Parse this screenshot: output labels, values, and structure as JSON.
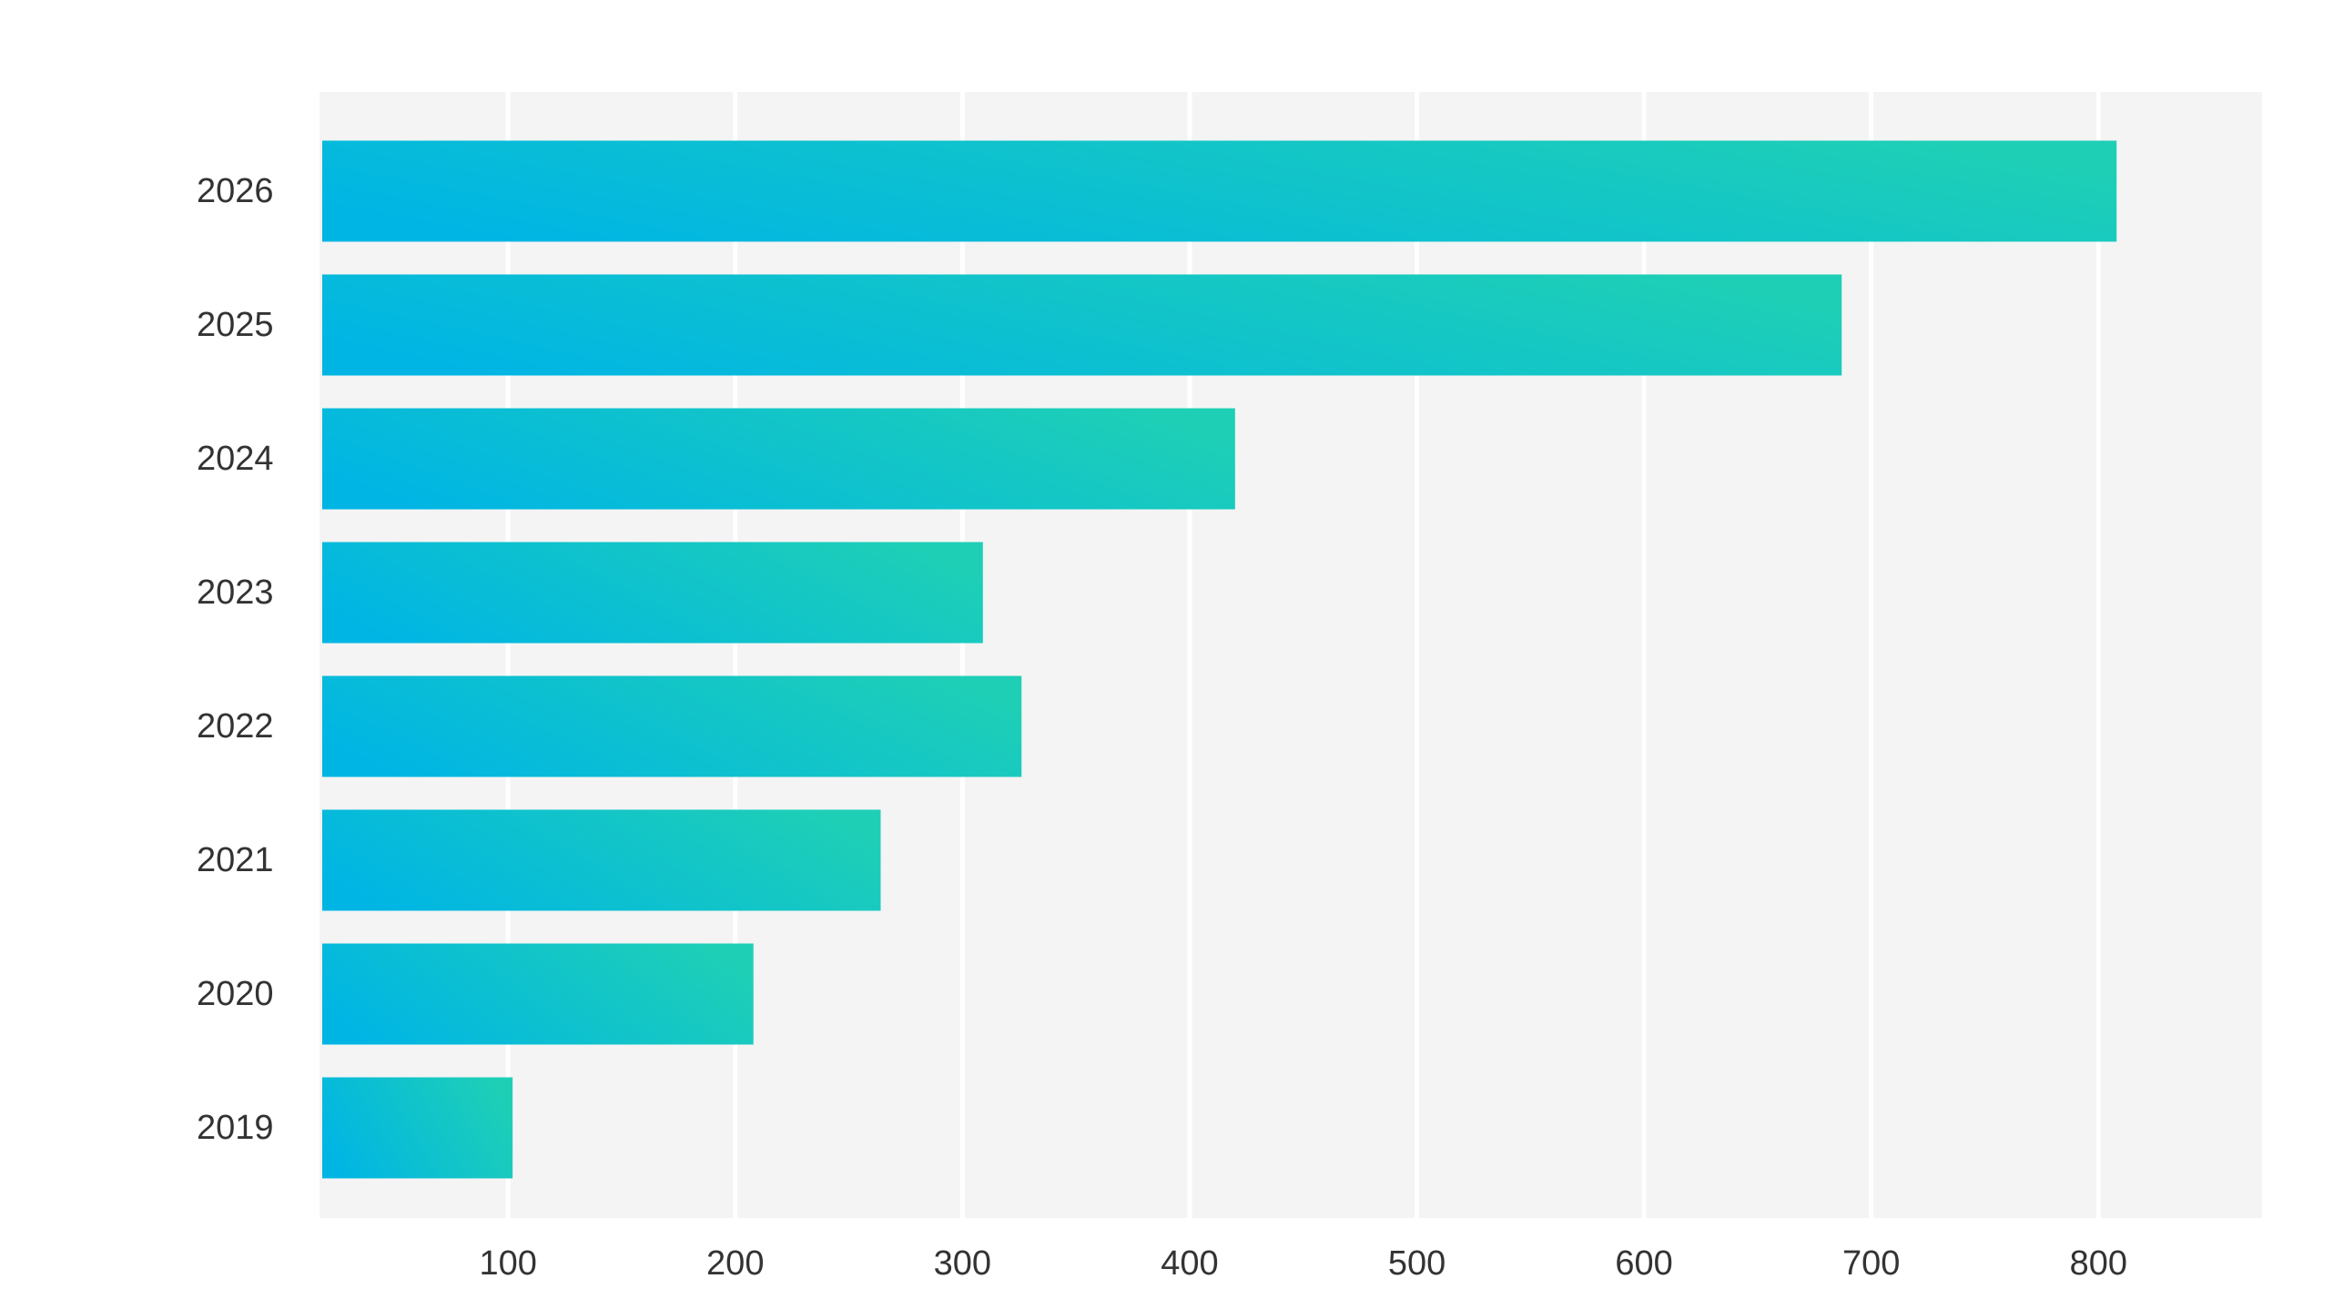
{
  "chart_data": {
    "type": "bar",
    "orientation": "horizontal",
    "title": "",
    "xlabel": "",
    "ylabel": "",
    "categories": [
      "2026",
      "2025",
      "2024",
      "2023",
      "2022",
      "2021",
      "2020",
      "2019"
    ],
    "values": [
      808,
      687,
      420,
      309,
      326,
      264,
      208,
      102
    ],
    "xlim": [
      17,
      872
    ],
    "xticks": [
      100,
      200,
      300,
      400,
      500,
      600,
      700,
      800
    ],
    "grid": true,
    "legend": "none",
    "colors": {
      "bar_gradient_start": "#00b5e4",
      "bar_gradient_end": "#1ecfb6",
      "plot_background": "#f4f4f4",
      "grid_line": "#ffffff",
      "label_text": "#333333"
    }
  }
}
